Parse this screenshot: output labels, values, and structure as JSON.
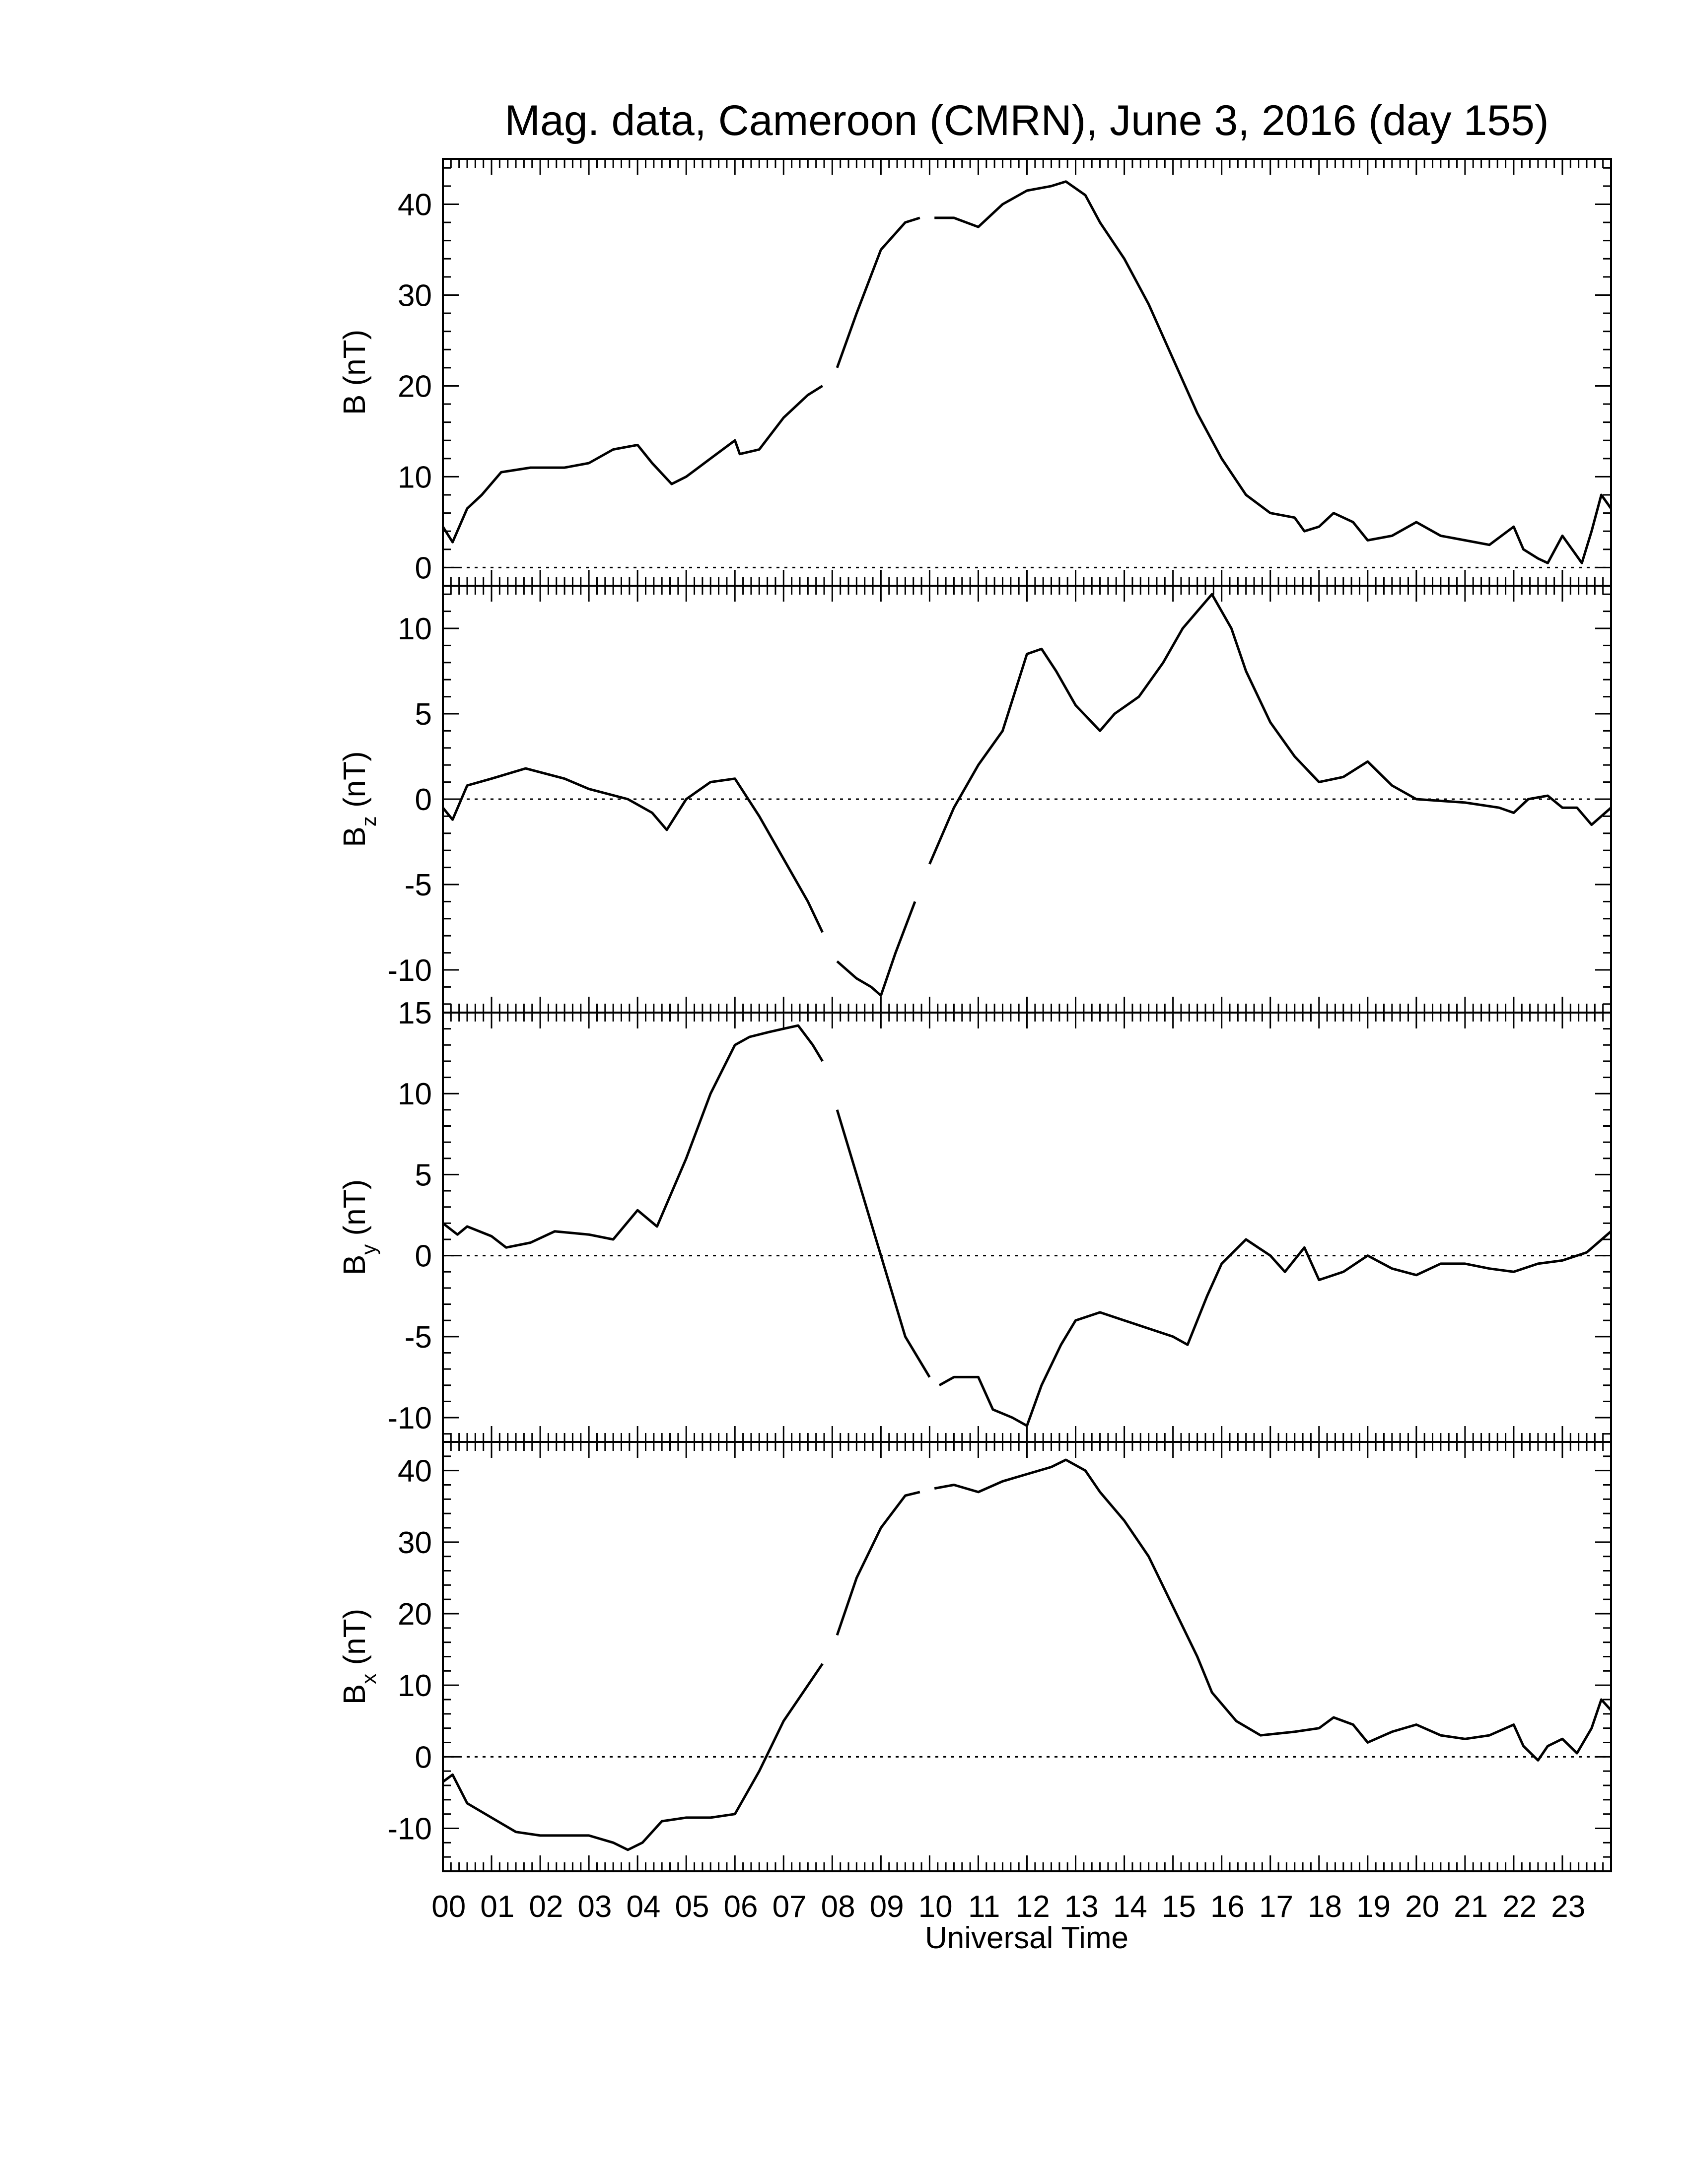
{
  "chart_data": {
    "type": "line",
    "title": "Mag. data, Cameroon (CMRN), June 3, 2016 (day 155)",
    "xlabel": "Universal Time",
    "xlim": [
      0,
      24
    ],
    "x_ticks": [
      "00",
      "01",
      "02",
      "03",
      "04",
      "05",
      "06",
      "07",
      "08",
      "09",
      "10",
      "11",
      "12",
      "13",
      "14",
      "15",
      "16",
      "17",
      "18",
      "19",
      "20",
      "21",
      "22",
      "23"
    ],
    "grid": false,
    "zero_line": "dotted",
    "panels": [
      {
        "id": "B",
        "ylabel": "B (nT)",
        "ylabel_main": "B",
        "ylabel_sub": "",
        "ylabel_unit": " (nT)",
        "ylim": [
          -2,
          45
        ],
        "yticks": [
          0,
          10,
          20,
          30,
          40
        ],
        "ytick_labels": [
          "0",
          "10",
          "20",
          "30",
          "40"
        ],
        "points": [
          [
            0,
            4.5
          ],
          [
            0.2,
            2.8
          ],
          [
            0.5,
            6.5
          ],
          [
            0.8,
            8
          ],
          [
            1.2,
            10.5
          ],
          [
            1.8,
            11
          ],
          [
            2.5,
            11
          ],
          [
            3,
            11.5
          ],
          [
            3.5,
            13
          ],
          [
            4,
            13.5
          ],
          [
            4.3,
            11.5
          ],
          [
            4.7,
            9.2
          ],
          [
            5,
            10
          ],
          [
            5.5,
            12
          ],
          [
            6,
            14
          ],
          [
            6.1,
            12.5
          ],
          [
            6.5,
            13
          ],
          [
            7,
            16.5
          ],
          [
            7.5,
            19
          ],
          [
            7.8,
            20
          ],
          [
            null,
            null
          ],
          [
            8.1,
            22
          ],
          [
            8.5,
            28
          ],
          [
            9,
            35
          ],
          [
            9.5,
            38
          ],
          [
            9.8,
            38.5
          ],
          [
            null,
            null
          ],
          [
            10.1,
            38.5
          ],
          [
            10.5,
            38.5
          ],
          [
            11,
            37.5
          ],
          [
            11.5,
            40
          ],
          [
            12,
            41.5
          ],
          [
            12.5,
            42
          ],
          [
            12.8,
            42.5
          ],
          [
            13.2,
            41
          ],
          [
            13.5,
            38
          ],
          [
            14,
            34
          ],
          [
            14.5,
            29
          ],
          [
            15,
            23
          ],
          [
            15.5,
            17
          ],
          [
            16,
            12
          ],
          [
            16.5,
            8
          ],
          [
            17,
            6
          ],
          [
            17.5,
            5.5
          ],
          [
            17.7,
            4
          ],
          [
            18,
            4.5
          ],
          [
            18.3,
            6
          ],
          [
            18.7,
            5
          ],
          [
            19,
            3
          ],
          [
            19.5,
            3.5
          ],
          [
            20,
            5
          ],
          [
            20.5,
            3.5
          ],
          [
            21,
            3
          ],
          [
            21.5,
            2.5
          ],
          [
            22,
            4.5
          ],
          [
            22.2,
            2
          ],
          [
            22.5,
            1
          ],
          [
            22.7,
            0.5
          ],
          [
            23,
            3.5
          ],
          [
            23.2,
            2
          ],
          [
            23.4,
            0.5
          ],
          [
            23.6,
            4
          ],
          [
            23.8,
            8
          ],
          [
            24,
            6.5
          ]
        ]
      },
      {
        "id": "Bz",
        "ylabel": "Bz (nT)",
        "ylabel_main": "B",
        "ylabel_sub": "z",
        "ylabel_unit": " (nT)",
        "ylim": [
          -12.5,
          12.5
        ],
        "yticks": [
          -10,
          -5,
          0,
          5,
          10
        ],
        "ytick_labels": [
          "-10",
          "-5",
          "0",
          "5",
          "10"
        ],
        "points": [
          [
            0,
            -0.5
          ],
          [
            0.2,
            -1.2
          ],
          [
            0.5,
            0.8
          ],
          [
            1,
            1.2
          ],
          [
            1.7,
            1.8
          ],
          [
            2.5,
            1.2
          ],
          [
            3,
            0.6
          ],
          [
            3.8,
            0
          ],
          [
            4.3,
            -0.8
          ],
          [
            4.6,
            -1.8
          ],
          [
            5,
            0
          ],
          [
            5.5,
            1
          ],
          [
            6,
            1.2
          ],
          [
            6.5,
            -1
          ],
          [
            7,
            -3.5
          ],
          [
            7.5,
            -6
          ],
          [
            7.8,
            -7.8
          ],
          [
            null,
            null
          ],
          [
            8.1,
            -9.5
          ],
          [
            8.5,
            -10.5
          ],
          [
            8.8,
            -11
          ],
          [
            9,
            -11.5
          ],
          [
            9.3,
            -9
          ],
          [
            9.7,
            -6
          ],
          [
            null,
            null
          ],
          [
            10,
            -3.8
          ],
          [
            10.5,
            -0.5
          ],
          [
            11,
            2
          ],
          [
            11.5,
            4
          ],
          [
            12,
            8.5
          ],
          [
            12.3,
            8.8
          ],
          [
            12.6,
            7.5
          ],
          [
            13,
            5.5
          ],
          [
            13.5,
            4
          ],
          [
            13.8,
            5
          ],
          [
            14.3,
            6
          ],
          [
            14.8,
            8
          ],
          [
            15.2,
            10
          ],
          [
            15.5,
            11
          ],
          [
            15.8,
            12
          ],
          [
            16.2,
            10
          ],
          [
            16.5,
            7.5
          ],
          [
            17,
            4.5
          ],
          [
            17.5,
            2.5
          ],
          [
            18,
            1
          ],
          [
            18.5,
            1.3
          ],
          [
            19,
            2.2
          ],
          [
            19.5,
            0.8
          ],
          [
            20,
            0
          ],
          [
            21,
            -0.2
          ],
          [
            21.7,
            -0.5
          ],
          [
            22,
            -0.8
          ],
          [
            22.3,
            0
          ],
          [
            22.7,
            0.2
          ],
          [
            23,
            -0.5
          ],
          [
            23.3,
            -0.5
          ],
          [
            23.6,
            -1.5
          ],
          [
            24,
            -0.5
          ]
        ]
      },
      {
        "id": "By",
        "ylabel": "By (nT)",
        "ylabel_main": "B",
        "ylabel_sub": "y",
        "ylabel_unit": " (nT)",
        "ylim": [
          -11.5,
          15
        ],
        "yticks": [
          -10,
          -5,
          0,
          5,
          10,
          15
        ],
        "ytick_labels": [
          "-10",
          "-5",
          "0",
          "5",
          "10",
          "15"
        ],
        "points": [
          [
            0,
            2
          ],
          [
            0.3,
            1.3
          ],
          [
            0.5,
            1.8
          ],
          [
            1,
            1.2
          ],
          [
            1.3,
            0.5
          ],
          [
            1.8,
            0.8
          ],
          [
            2.3,
            1.5
          ],
          [
            3,
            1.3
          ],
          [
            3.5,
            1
          ],
          [
            4,
            2.8
          ],
          [
            4.4,
            1.8
          ],
          [
            5,
            6
          ],
          [
            5.5,
            10
          ],
          [
            6,
            13
          ],
          [
            6.3,
            13.5
          ],
          [
            6.7,
            13.8
          ],
          [
            7,
            14
          ],
          [
            7.3,
            14.2
          ],
          [
            7.6,
            13
          ],
          [
            7.8,
            12
          ],
          [
            null,
            null
          ],
          [
            8.1,
            9
          ],
          [
            8.5,
            5
          ],
          [
            9,
            0
          ],
          [
            9.5,
            -5
          ],
          [
            9.8,
            -6.5
          ],
          [
            10,
            -7.5
          ],
          [
            null,
            null
          ],
          [
            10.2,
            -8
          ],
          [
            10.5,
            -7.5
          ],
          [
            11,
            -7.5
          ],
          [
            11.3,
            -9.5
          ],
          [
            11.7,
            -10
          ],
          [
            12,
            -10.5
          ],
          [
            12.3,
            -8
          ],
          [
            12.7,
            -5.5
          ],
          [
            13,
            -4
          ],
          [
            13.5,
            -3.5
          ],
          [
            14,
            -4
          ],
          [
            14.5,
            -4.5
          ],
          [
            15,
            -5
          ],
          [
            15.3,
            -5.5
          ],
          [
            15.7,
            -2.5
          ],
          [
            16,
            -0.5
          ],
          [
            16.5,
            1
          ],
          [
            17,
            0
          ],
          [
            17.3,
            -1
          ],
          [
            17.7,
            0.5
          ],
          [
            18,
            -1.5
          ],
          [
            18.5,
            -1
          ],
          [
            19,
            0
          ],
          [
            19.5,
            -0.8
          ],
          [
            20,
            -1.2
          ],
          [
            20.5,
            -0.5
          ],
          [
            21,
            -0.5
          ],
          [
            21.5,
            -0.8
          ],
          [
            22,
            -1
          ],
          [
            22.5,
            -0.5
          ],
          [
            23,
            -0.3
          ],
          [
            23.5,
            0.2
          ],
          [
            24,
            1.5
          ]
        ]
      },
      {
        "id": "Bx",
        "ylabel": "Bx (nT)",
        "ylabel_main": "B",
        "ylabel_sub": "x",
        "ylabel_unit": " (nT)",
        "ylim": [
          -16,
          44
        ],
        "yticks": [
          -10,
          0,
          10,
          20,
          30,
          40
        ],
        "ytick_labels": [
          "-10",
          "0",
          "10",
          "20",
          "30",
          "40"
        ],
        "points": [
          [
            0,
            -3.5
          ],
          [
            0.2,
            -2.5
          ],
          [
            0.5,
            -6.5
          ],
          [
            1,
            -8.5
          ],
          [
            1.5,
            -10.5
          ],
          [
            2,
            -11
          ],
          [
            3,
            -11
          ],
          [
            3.5,
            -12
          ],
          [
            3.8,
            -13
          ],
          [
            4.1,
            -12
          ],
          [
            4.5,
            -9
          ],
          [
            5,
            -8.5
          ],
          [
            5.5,
            -8.5
          ],
          [
            6,
            -8
          ],
          [
            6.5,
            -2
          ],
          [
            7,
            5
          ],
          [
            7.5,
            10
          ],
          [
            7.8,
            13
          ],
          [
            null,
            null
          ],
          [
            8.1,
            17
          ],
          [
            8.5,
            25
          ],
          [
            9,
            32
          ],
          [
            9.5,
            36.5
          ],
          [
            9.8,
            37
          ],
          [
            null,
            null
          ],
          [
            10.1,
            37.5
          ],
          [
            10.5,
            38
          ],
          [
            11,
            37
          ],
          [
            11.5,
            38.5
          ],
          [
            12,
            39.5
          ],
          [
            12.5,
            40.5
          ],
          [
            12.8,
            41.5
          ],
          [
            13.2,
            40
          ],
          [
            13.5,
            37
          ],
          [
            14,
            33
          ],
          [
            14.5,
            28
          ],
          [
            15,
            21
          ],
          [
            15.5,
            14
          ],
          [
            15.8,
            9
          ],
          [
            16.3,
            5
          ],
          [
            16.8,
            3
          ],
          [
            17.5,
            3.5
          ],
          [
            18,
            4
          ],
          [
            18.3,
            5.5
          ],
          [
            18.7,
            4.5
          ],
          [
            19,
            2
          ],
          [
            19.5,
            3.5
          ],
          [
            20,
            4.5
          ],
          [
            20.5,
            3
          ],
          [
            21,
            2.5
          ],
          [
            21.5,
            3
          ],
          [
            22,
            4.5
          ],
          [
            22.2,
            1.5
          ],
          [
            22.5,
            -0.5
          ],
          [
            22.7,
            1.5
          ],
          [
            23,
            2.5
          ],
          [
            23.3,
            0.5
          ],
          [
            23.6,
            4
          ],
          [
            23.8,
            8
          ],
          [
            24,
            6.5
          ]
        ]
      }
    ]
  }
}
